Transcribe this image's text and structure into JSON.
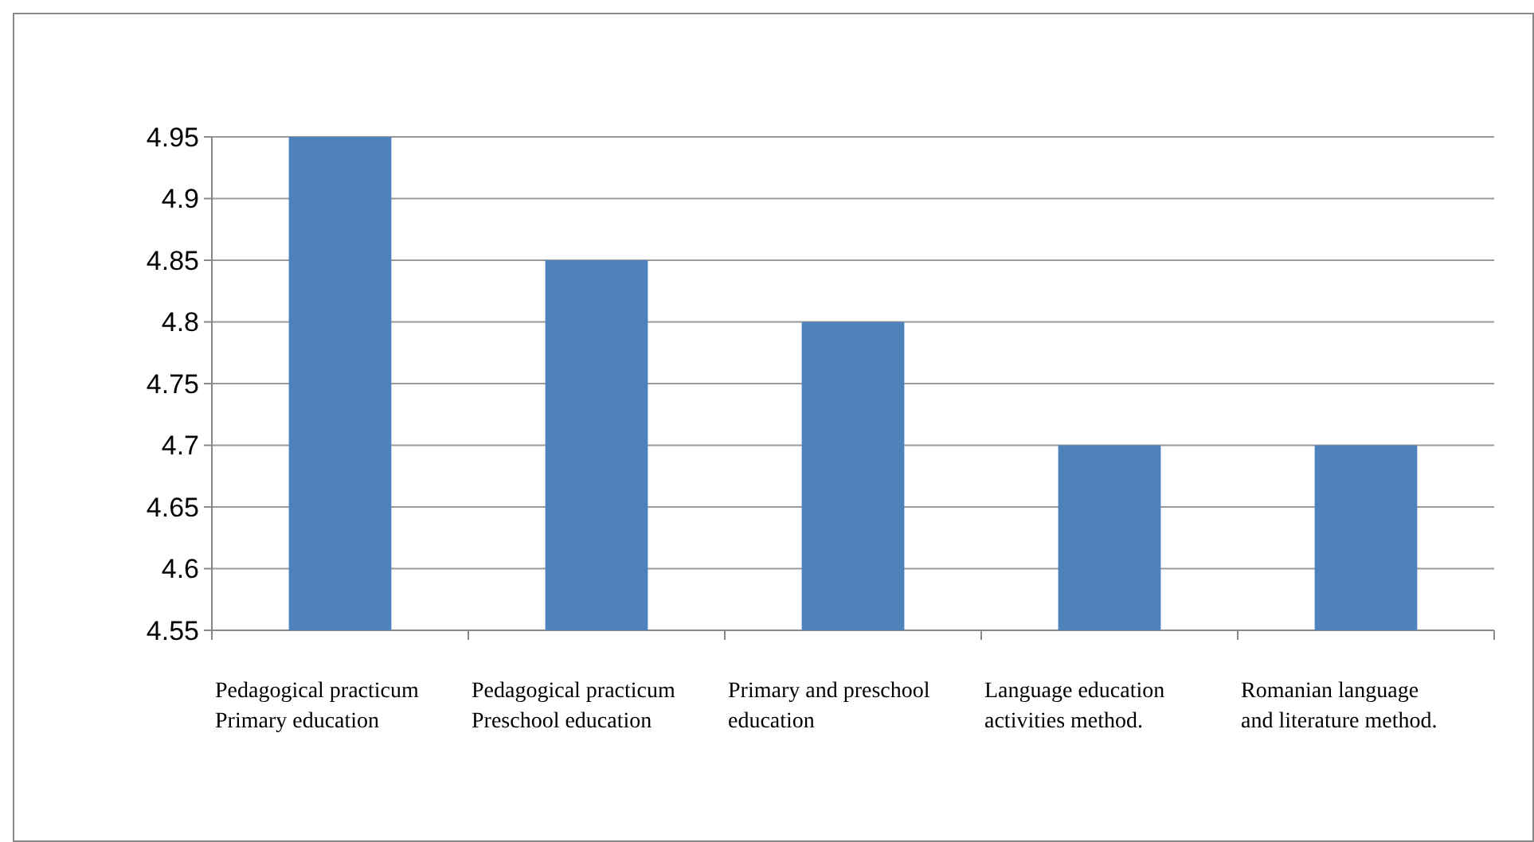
{
  "chart_data": {
    "type": "bar",
    "categories": [
      "Pedagogical practicum\nPrimary education",
      "Pedagogical practicum\nPreschool education",
      "Primary and preschool\neducation",
      "Language education\nactivities method.",
      "Romanian language\nand literature method."
    ],
    "values": [
      4.95,
      4.85,
      4.8,
      4.7,
      4.7
    ],
    "color": "#4f81bd",
    "ylim": [
      4.55,
      4.95
    ],
    "yticks": [
      4.55,
      4.6,
      4.65,
      4.7,
      4.75,
      4.8,
      4.85,
      4.9,
      4.95
    ],
    "grid": "y"
  }
}
